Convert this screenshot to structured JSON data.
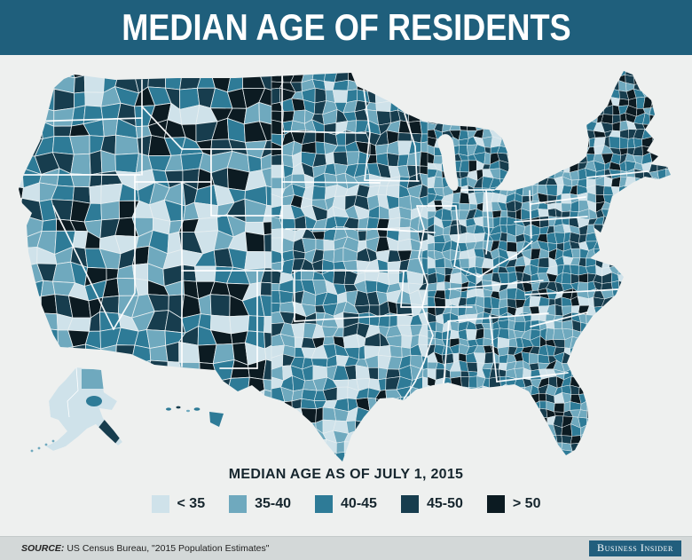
{
  "header": {
    "title": "MEDIAN AGE OF RESIDENTS",
    "background": "#1F5F7C",
    "text_color": "#FFFFFF"
  },
  "map": {
    "name": "us-county-median-age-choropleth",
    "background": "#EEF0EF",
    "county_border_color": "#E8EFF1",
    "state_border_color": "#FFFFFF"
  },
  "legend": {
    "title": "MEDIAN AGE AS OF JULY 1, 2015",
    "classes": [
      {
        "label": "< 35",
        "color": "#CFE2EA"
      },
      {
        "label": "35-40",
        "color": "#6FA9BE"
      },
      {
        "label": "40-45",
        "color": "#2E7B97"
      },
      {
        "label": "45-50",
        "color": "#173D4E"
      },
      {
        "label": "> 50",
        "color": "#0C1B22"
      }
    ]
  },
  "footer": {
    "source_label": "SOURCE:",
    "source_text": " US Census Bureau, \"2015 Population Estimates\"",
    "brand": "Business Insider",
    "brand_background": "#215E7D"
  },
  "chart_data": {
    "type": "heatmap",
    "subtype": "choropleth-map",
    "region": "United States counties (incl. Alaska and Hawaii)",
    "title": "MEDIAN AGE OF RESIDENTS",
    "legend_title": "MEDIAN AGE AS OF JULY 1, 2015",
    "classes": [
      "< 35",
      "35-40",
      "40-45",
      "45-50",
      "> 50"
    ],
    "class_colors": [
      "#CFE2EA",
      "#6FA9BE",
      "#2E7B97",
      "#173D4E",
      "#0C1B22"
    ],
    "legend_position": "bottom"
  }
}
